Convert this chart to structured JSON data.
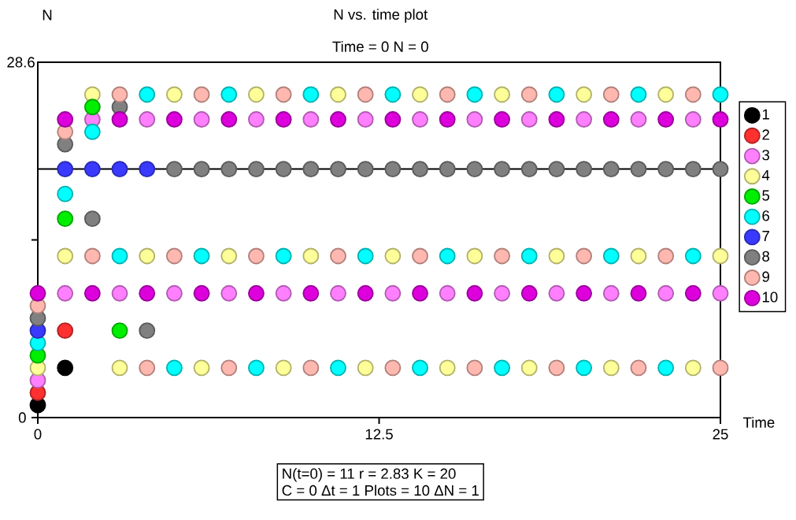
{
  "chart_data": {
    "type": "scatter",
    "title": "N vs. time plot",
    "subtitle": "Time = 0  N = 0",
    "xlabel": "Time",
    "ylabel": "N",
    "annotations": [
      "N(t=0) = 11   r = 2.83   K = 20",
      "C = 0   Δt = 1   Plots = 10   ΔN = 1"
    ],
    "x": [
      0,
      1,
      2,
      3,
      4,
      5,
      6,
      7,
      8,
      9,
      10,
      11,
      12,
      13,
      14,
      15,
      16,
      17,
      18,
      19,
      20,
      21,
      22,
      23,
      24,
      25
    ],
    "xlim": [
      0,
      25
    ],
    "xticks": [
      0,
      12.5,
      25
    ],
    "ylim": [
      0,
      28.6
    ],
    "yticks": [
      0,
      {
        "value": 14.3,
        "label": null
      },
      28.6
    ],
    "legend": "right",
    "ref_lines": [
      {
        "axis": "y",
        "value": 20,
        "color": "#000000"
      }
    ],
    "series": [
      {
        "name": "1",
        "color": "#000000",
        "values": [
          1,
          4,
          null,
          null,
          null,
          null,
          null,
          null,
          null,
          null,
          null,
          null,
          null,
          null,
          null,
          null,
          null,
          null,
          null,
          null,
          null,
          null,
          null,
          null,
          null,
          null
        ]
      },
      {
        "name": "2",
        "color": "#ff3030",
        "values": [
          2,
          7,
          null,
          null,
          null,
          null,
          null,
          null,
          null,
          null,
          null,
          null,
          null,
          null,
          null,
          null,
          null,
          null,
          null,
          null,
          null,
          null,
          null,
          null,
          null,
          null
        ]
      },
      {
        "name": "3",
        "color": "#ff80ff",
        "values": [
          3,
          10,
          24,
          10,
          24,
          10,
          24,
          10,
          24,
          10,
          24,
          10,
          24,
          10,
          24,
          10,
          24,
          10,
          24,
          10,
          24,
          10,
          24,
          10,
          24,
          10
        ]
      },
      {
        "name": "4",
        "color": "#ffff99",
        "values": [
          4,
          13,
          26,
          4,
          13,
          26,
          4,
          13,
          26,
          4,
          13,
          26,
          4,
          13,
          26,
          4,
          13,
          26,
          4,
          13,
          26,
          4,
          13,
          26,
          4,
          13
        ]
      },
      {
        "name": "5",
        "color": "#00ee00",
        "values": [
          5,
          16,
          25,
          7,
          null,
          null,
          null,
          null,
          null,
          null,
          null,
          null,
          null,
          null,
          null,
          null,
          null,
          null,
          null,
          null,
          null,
          null,
          null,
          null,
          null,
          null
        ]
      },
      {
        "name": "6",
        "color": "#00ffff",
        "values": [
          6,
          18,
          23,
          13,
          26,
          4,
          13,
          26,
          4,
          13,
          26,
          4,
          13,
          26,
          4,
          13,
          26,
          4,
          13,
          26,
          4,
          13,
          26,
          4,
          13,
          26
        ]
      },
      {
        "name": "7",
        "color": "#3a3aff",
        "values": [
          7,
          20,
          20,
          20,
          20,
          null,
          null,
          null,
          null,
          null,
          null,
          null,
          null,
          null,
          null,
          null,
          null,
          null,
          null,
          null,
          null,
          null,
          null,
          null,
          null,
          null
        ]
      },
      {
        "name": "8",
        "color": "#808080",
        "values": [
          8,
          22,
          16,
          25,
          7,
          20,
          20,
          20,
          20,
          20,
          20,
          20,
          20,
          20,
          20,
          20,
          20,
          20,
          20,
          20,
          20,
          20,
          20,
          20,
          20,
          20
        ]
      },
      {
        "name": "9",
        "color": "#ffb8b0",
        "values": [
          9,
          23,
          13,
          26,
          4,
          13,
          26,
          4,
          13,
          26,
          4,
          13,
          26,
          4,
          13,
          26,
          4,
          13,
          26,
          4,
          13,
          26,
          4,
          13,
          26,
          4
        ]
      },
      {
        "name": "10",
        "color": "#dd00dd",
        "values": [
          10,
          24,
          10,
          24,
          10,
          24,
          10,
          24,
          10,
          24,
          10,
          24,
          10,
          24,
          10,
          24,
          10,
          24,
          10,
          24,
          10,
          24,
          10,
          24,
          10,
          24
        ]
      }
    ]
  }
}
